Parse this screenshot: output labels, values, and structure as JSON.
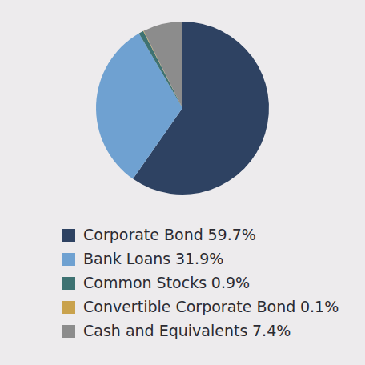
{
  "chart_data": {
    "type": "pie",
    "categories": [
      "Corporate Bond",
      "Bank Loans",
      "Common Stocks",
      "Convertible Corporate Bond",
      "Cash and Equivalents"
    ],
    "values": [
      59.7,
      31.9,
      0.9,
      0.1,
      7.4
    ],
    "value_labels": [
      "59.7%",
      "31.9%",
      "0.9%",
      "0.1%",
      "7.4%"
    ],
    "colors": [
      "#2e4262",
      "#6fa1d1",
      "#3e7272",
      "#c9a24d",
      "#8c8c8c"
    ],
    "legend": "bottom"
  }
}
